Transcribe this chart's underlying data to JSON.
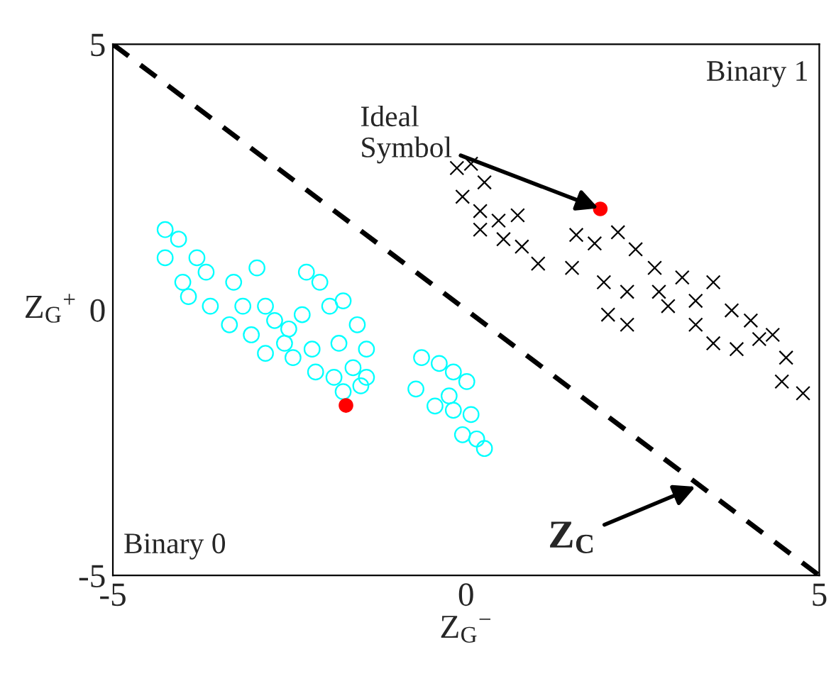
{
  "chart_data": {
    "type": "scatter",
    "xlabel": "Z$_{G}$$^{−}$",
    "ylabel": "Z$_{G}$$^{+}$",
    "xlim": [
      -5,
      5
    ],
    "ylim": [
      -5,
      5
    ],
    "xticks": [
      -5,
      0,
      5
    ],
    "yticks": [
      -5,
      0,
      5
    ],
    "grid": false,
    "legend": false,
    "series": [
      {
        "marker": "circle",
        "color": "#00ffff",
        "x": [
          -4.26,
          -4.26,
          -3.93,
          -3.62,
          -3.68,
          -3.16,
          -2.96,
          -2.84,
          -2.84,
          -2.51,
          -2.45,
          -2.26,
          -2.07,
          -1.93,
          -1.74,
          -2.13,
          -1.87,
          -1.6,
          -1.41,
          -1.41,
          -1.74,
          -1.49,
          -1.54,
          -2.57,
          -3.35,
          -4.01,
          -4.07,
          -3.81,
          -3.29,
          -3.04,
          -2.71,
          -2.32,
          -1.8,
          -2.18,
          -0.63,
          -0.71,
          -0.38,
          -0.18,
          0.01,
          -0.44,
          -0.18,
          0.07,
          -0.05,
          0.26,
          0.15,
          -0.24
        ],
        "values": [
          1.51,
          0.98,
          0.25,
          0.07,
          0.71,
          0.07,
          0.79,
          0.07,
          -0.82,
          -0.36,
          -0.9,
          0.71,
          0.52,
          0.07,
          0.17,
          -1.17,
          -1.27,
          -1.09,
          -0.74,
          -1.27,
          -1.54,
          -1.43,
          -0.28,
          -0.63,
          -0.28,
          0.52,
          1.33,
          0.98,
          0.52,
          -0.47,
          -0.2,
          -0.09,
          -0.63,
          -0.74,
          -0.9,
          -1.49,
          -1.01,
          -1.17,
          -1.35,
          -1.81,
          -1.89,
          -1.97,
          -2.35,
          -2.61,
          -2.43,
          -1.62
        ]
      },
      {
        "marker": "cross",
        "color": "#000000",
        "x": [
          -0.13,
          0.07,
          0.26,
          -0.05,
          0.2,
          0.46,
          0.73,
          0.53,
          0.2,
          0.79,
          1.02,
          1.56,
          1.5,
          1.82,
          1.95,
          2.01,
          2.28,
          2.28,
          2.15,
          2.4,
          2.67,
          2.73,
          3.06,
          3.25,
          3.5,
          3.5,
          3.76,
          4.03,
          4.15,
          4.34,
          4.53,
          4.47,
          4.77,
          3.83,
          3.25,
          2.86
        ],
        "values": [
          2.67,
          2.75,
          2.4,
          2.13,
          1.86,
          1.68,
          1.78,
          1.33,
          1.51,
          1.19,
          0.87,
          1.41,
          0.79,
          1.25,
          0.52,
          -0.09,
          -0.28,
          0.34,
          1.46,
          1.14,
          0.79,
          0.34,
          0.61,
          0.17,
          0.52,
          -0.63,
          -0.01,
          -0.2,
          -0.55,
          -0.47,
          -0.9,
          -1.35,
          -1.57,
          -0.74,
          -0.28,
          0.07
        ]
      },
      {
        "marker": "circle",
        "color": "#ff0000",
        "x": [
          1.9,
          -1.7
        ],
        "values": [
          1.9,
          -1.8
        ]
      },
      {
        "type": "line",
        "line_style": "dashed",
        "color": "#000000",
        "x": [
          -5,
          5
        ],
        "values": [
          5,
          -5
        ]
      }
    ],
    "annotations": [
      {
        "text": "Ideal\nSymbol",
        "x": 1.9,
        "y": 1.9
      },
      {
        "text": "Z$_{C}$",
        "x": 3.3,
        "y": -3.3
      },
      "Binary 1",
      "Binary 0"
    ]
  }
}
